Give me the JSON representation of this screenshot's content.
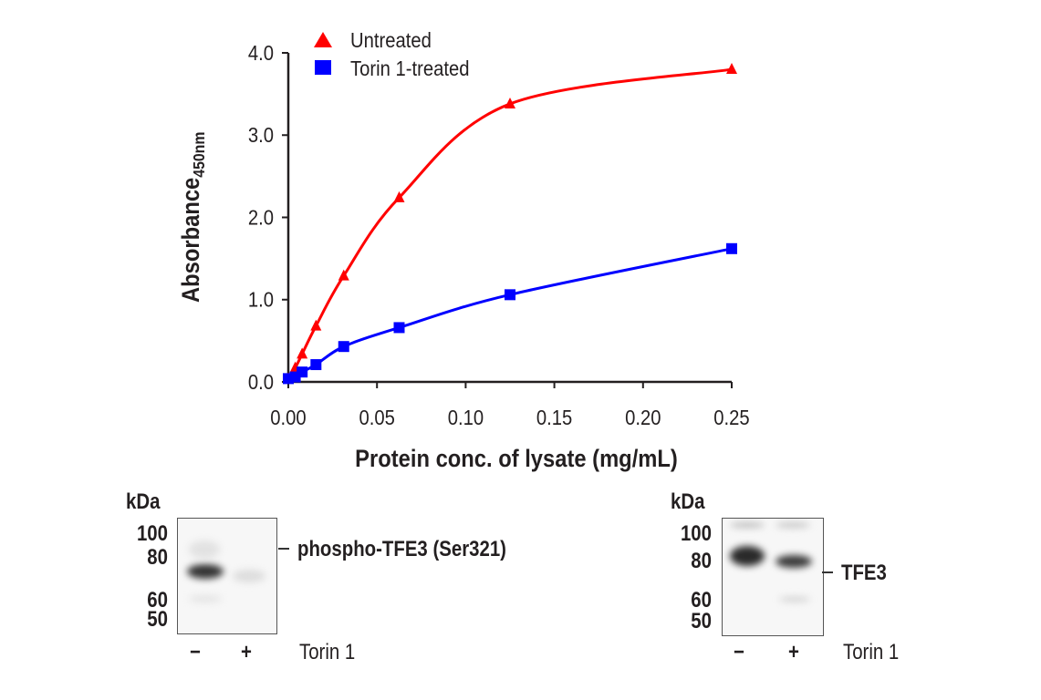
{
  "chart_data": {
    "type": "line",
    "title": "",
    "xlabel": "Protein conc. of lysate (mg/mL)",
    "ylabel": "Absorbance",
    "ylabel_subscript": "450nm",
    "xlim": [
      0,
      0.25
    ],
    "ylim": [
      0,
      4.0
    ],
    "xticks": [
      "0.00",
      "0.05",
      "0.10",
      "0.15",
      "0.20",
      "0.25"
    ],
    "yticks": [
      "0.0",
      "1.0",
      "2.0",
      "3.0",
      "4.0"
    ],
    "grid": false,
    "legend_position": "top-left",
    "x": [
      0,
      0.0039,
      0.0078,
      0.0156,
      0.03125,
      0.0625,
      0.125,
      0.25
    ],
    "series": [
      {
        "name": "Untreated",
        "marker": "triangle",
        "color": "#ff0000",
        "values": [
          0.04,
          0.17,
          0.34,
          0.68,
          1.29,
          2.24,
          3.38,
          3.8
        ]
      },
      {
        "name": "Torin 1-treated",
        "marker": "square",
        "color": "#0000ff",
        "values": [
          0.04,
          0.06,
          0.12,
          0.21,
          0.43,
          0.66,
          1.06,
          1.62
        ]
      }
    ]
  },
  "blots": [
    {
      "kda_label": "kDa",
      "markers": [
        "100",
        "80",
        "60",
        "50"
      ],
      "band_label": "phospho-TFE3 (Ser321)",
      "lanes": [
        "−",
        "+"
      ],
      "treatment_label": "Torin 1"
    },
    {
      "kda_label": "kDa",
      "markers": [
        "100",
        "80",
        "60",
        "50"
      ],
      "band_label": "TFE3",
      "lanes": [
        "−",
        "+"
      ],
      "treatment_label": "Torin 1"
    }
  ]
}
